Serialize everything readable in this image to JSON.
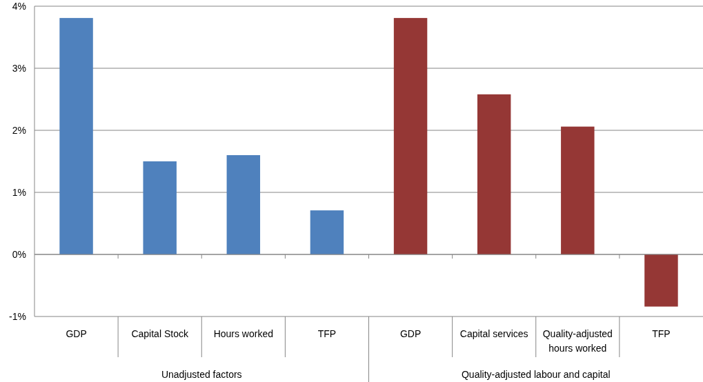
{
  "chart_data": {
    "type": "bar",
    "categories": [
      "GDP",
      "Capital Stock",
      "Hours worked",
      "TFP",
      "GDP",
      "Capital services",
      "Quality-adjusted hours worked",
      "TFP"
    ],
    "values": [
      3.81,
      1.5,
      1.6,
      0.71,
      3.81,
      2.58,
      2.06,
      -0.84
    ],
    "colors": [
      "#4f81bd",
      "#4f81bd",
      "#4f81bd",
      "#4f81bd",
      "#953735",
      "#953735",
      "#953735",
      "#953735"
    ],
    "ylim": [
      -1,
      4
    ],
    "yticks": [
      {
        "value": -1,
        "label": "-1%"
      },
      {
        "value": 0,
        "label": "0%"
      },
      {
        "value": 1,
        "label": "1%"
      },
      {
        "value": 2,
        "label": "2%"
      },
      {
        "value": 3,
        "label": "3%"
      },
      {
        "value": 4,
        "label": "4%"
      }
    ],
    "grid": "y",
    "annotations": [
      "Unadjusted factors",
      "Quality-adjusted labour and capital"
    ]
  }
}
